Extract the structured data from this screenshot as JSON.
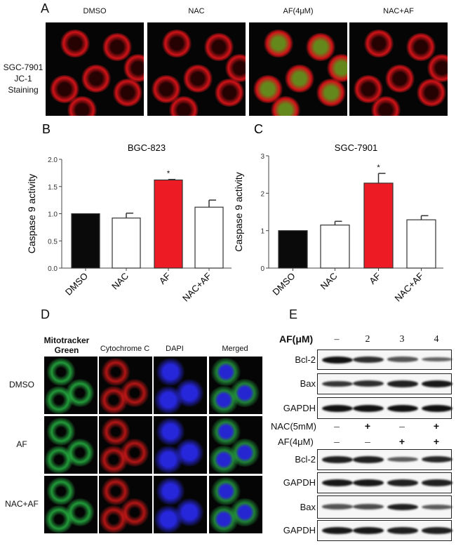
{
  "panelA": {
    "label": "A",
    "row_label": [
      "SGC-7901",
      "JC-1",
      "Staining"
    ],
    "columns": [
      "DMSO",
      "NAC",
      "AF(4μM)",
      "NAC+AF"
    ],
    "colors": {
      "red": "#e0141a",
      "green": "#6a9a20"
    }
  },
  "chart_data": [
    {
      "panel_label": "B",
      "type": "bar",
      "title": "BGC-823",
      "ylabel": "Caspase 9 activity",
      "categories": [
        "DMSO",
        "NAC",
        "AF",
        "NAC+AF"
      ],
      "values": [
        1.0,
        0.92,
        1.62,
        1.12
      ],
      "errors": [
        0,
        0.09,
        0.01,
        0.13
      ],
      "significance": [
        "",
        "",
        "*",
        ""
      ],
      "bar_colors": [
        "#0a0a0a",
        "#ffffff",
        "#ed1c24",
        "#ffffff"
      ],
      "ylim": [
        0,
        2.0
      ],
      "yticks": [
        "0.0",
        "0.5",
        "1.0",
        "1.5",
        "2.0"
      ],
      "ytick_values": [
        0,
        0.5,
        1.0,
        1.5,
        2.0
      ]
    },
    {
      "panel_label": "C",
      "type": "bar",
      "title": "SGC-7901",
      "ylabel": "Caspase 9 activity",
      "categories": [
        "DMSO",
        "NAC",
        "AF",
        "NAC+AF"
      ],
      "values": [
        1.0,
        1.15,
        2.27,
        1.29
      ],
      "errors": [
        0,
        0.1,
        0.26,
        0.11
      ],
      "significance": [
        "",
        "",
        "*",
        ""
      ],
      "bar_colors": [
        "#0a0a0a",
        "#ffffff",
        "#ed1c24",
        "#ffffff"
      ],
      "ylim": [
        0,
        3
      ],
      "yticks": [
        "0",
        "1",
        "2",
        "3"
      ],
      "ytick_values": [
        0,
        1,
        2,
        3
      ]
    }
  ],
  "panelD": {
    "label": "D",
    "columns": [
      "Mitotracker Green",
      "Cytochrome C",
      "DAPI",
      "Merged"
    ],
    "rows": [
      "DMSO",
      "AF",
      "NAC+AF"
    ]
  },
  "panelE": {
    "label": "E",
    "top": {
      "condition_label": "AF(μM)",
      "lanes": [
        "–",
        "2",
        "3",
        "4"
      ],
      "blots": [
        {
          "name": "Bcl-2",
          "intensity": [
            1.0,
            0.8,
            0.55,
            0.45
          ]
        },
        {
          "name": "Bax",
          "intensity": [
            0.75,
            0.8,
            0.9,
            0.95
          ]
        },
        {
          "name": "GAPDH",
          "intensity": [
            1.0,
            1.0,
            1.0,
            1.0
          ]
        }
      ]
    },
    "bottom": {
      "conditions": [
        {
          "label": "NAC(5mM)",
          "signs": [
            "–",
            "+",
            "–",
            "+"
          ]
        },
        {
          "label": "AF(4μM)",
          "signs": [
            "–",
            "–",
            "+",
            "+"
          ]
        }
      ],
      "blots": [
        {
          "name": "Bcl-2",
          "intensity": [
            0.9,
            0.9,
            0.5,
            0.85
          ]
        },
        {
          "name": "GAPDH",
          "intensity": [
            0.95,
            0.95,
            0.9,
            0.9
          ]
        },
        {
          "name": "Bax",
          "intensity": [
            0.55,
            0.6,
            0.9,
            0.5
          ]
        },
        {
          "name": "GAPDH",
          "intensity": [
            0.95,
            0.95,
            0.9,
            0.9
          ]
        }
      ]
    }
  }
}
